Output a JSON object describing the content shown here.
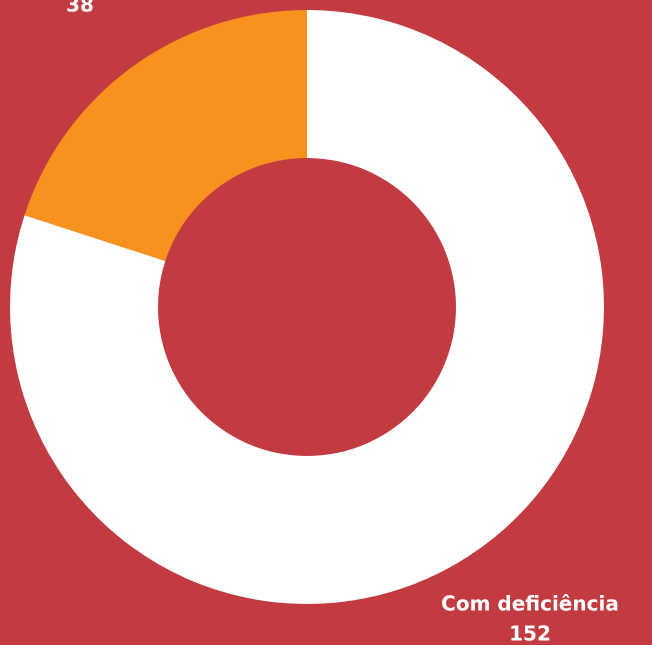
{
  "chart_data": {
    "type": "donut",
    "categories": [
      "Com deficiência",
      null
    ],
    "values": [
      152,
      38
    ],
    "colors": [
      "#ffffff",
      "#f7921e"
    ],
    "background": "#c13b40"
  }
}
